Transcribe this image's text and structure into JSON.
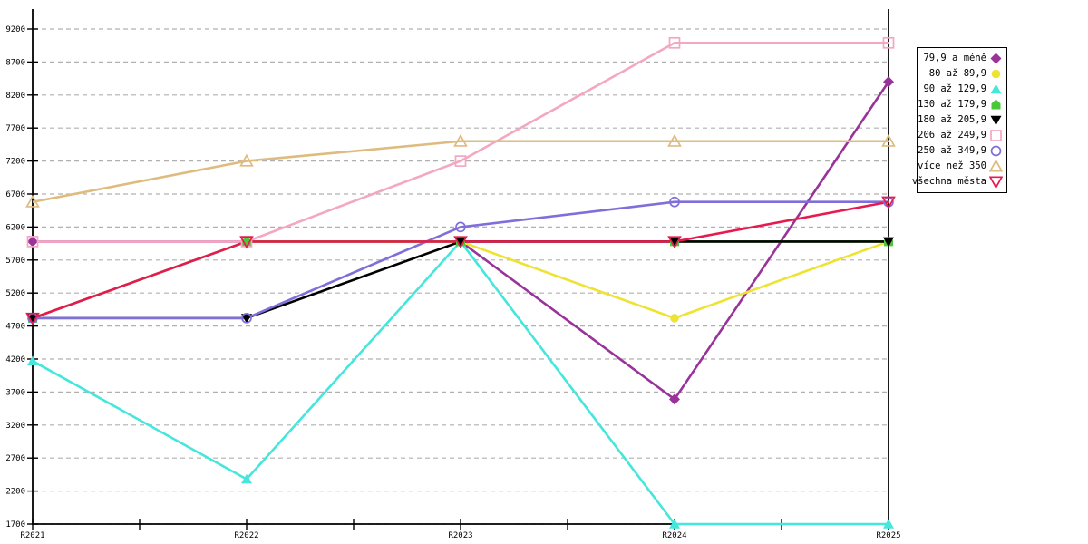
{
  "chart_data": {
    "type": "line",
    "title": "",
    "x_categories": [
      "R2021",
      "R2022",
      "R2023",
      "R2024",
      "R2025"
    ],
    "x_minor_ticks_between_majors": true,
    "ylim": [
      1700,
      9200
    ],
    "ytick_step": 500,
    "y_tick_labels": [
      "1700",
      "2200",
      "2700",
      "3200",
      "3700",
      "4200",
      "4700",
      "5200",
      "5700",
      "6200",
      "6700",
      "7200",
      "7700",
      "8200",
      "8700",
      "9200"
    ],
    "grid": "horizontal-dashed",
    "legend_position": "right",
    "series": [
      {
        "name": "79,9 a méně",
        "color": "#993399",
        "marker": "diamond-filled",
        "values": [
          5980,
          5980,
          5980,
          3590,
          8400
        ]
      },
      {
        "name": "80 až 89,9",
        "color": "#EDE330",
        "marker": "circle-filled",
        "values": [
          null,
          5980,
          5980,
          4820,
          5980
        ]
      },
      {
        "name": "90 až 129,9",
        "color": "#45E6DC",
        "marker": "triangle-up-filled",
        "values": [
          4170,
          2380,
          5980,
          1700,
          1700
        ]
      },
      {
        "name": "130 až 179,9",
        "color": "#4AC83A",
        "marker": "pentagon-filled",
        "values": [
          4820,
          5980,
          5980,
          5980,
          5980
        ]
      },
      {
        "name": "180 až 205,9",
        "color": "#000000",
        "marker": "triangle-down-filled",
        "values": [
          4820,
          4820,
          5980,
          5980,
          5980
        ]
      },
      {
        "name": "206 až 249,9",
        "color": "#F4A7C0",
        "marker": "square-open",
        "values": [
          5980,
          5980,
          7200,
          8990,
          8990
        ]
      },
      {
        "name": "250 až 349,9",
        "color": "#7F6FDB",
        "marker": "circle-open",
        "values": [
          4820,
          4820,
          6200,
          6580,
          6580
        ]
      },
      {
        "name": "více než 350",
        "color": "#DEBB7E",
        "marker": "triangle-up-open",
        "values": [
          6580,
          7200,
          7500,
          7500,
          7500
        ]
      },
      {
        "name": "všechna města",
        "color": "#E51A4F",
        "marker": "triangle-down-open",
        "values": [
          4820,
          5980,
          5980,
          5980,
          6580
        ]
      }
    ]
  },
  "colors": {
    "background": "#FFFFFF",
    "grid": "#B0B0B0",
    "axis": "#000000",
    "text": "#000000"
  }
}
